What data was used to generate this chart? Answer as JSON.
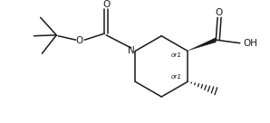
{
  "bg_color": "#ffffff",
  "line_color": "#1a1a1a",
  "line_width": 1.1,
  "fig_width": 2.98,
  "fig_height": 1.36,
  "dpi": 100,
  "xlim": [
    -1.75,
    1.45
  ],
  "ylim": [
    -0.72,
    0.72
  ]
}
